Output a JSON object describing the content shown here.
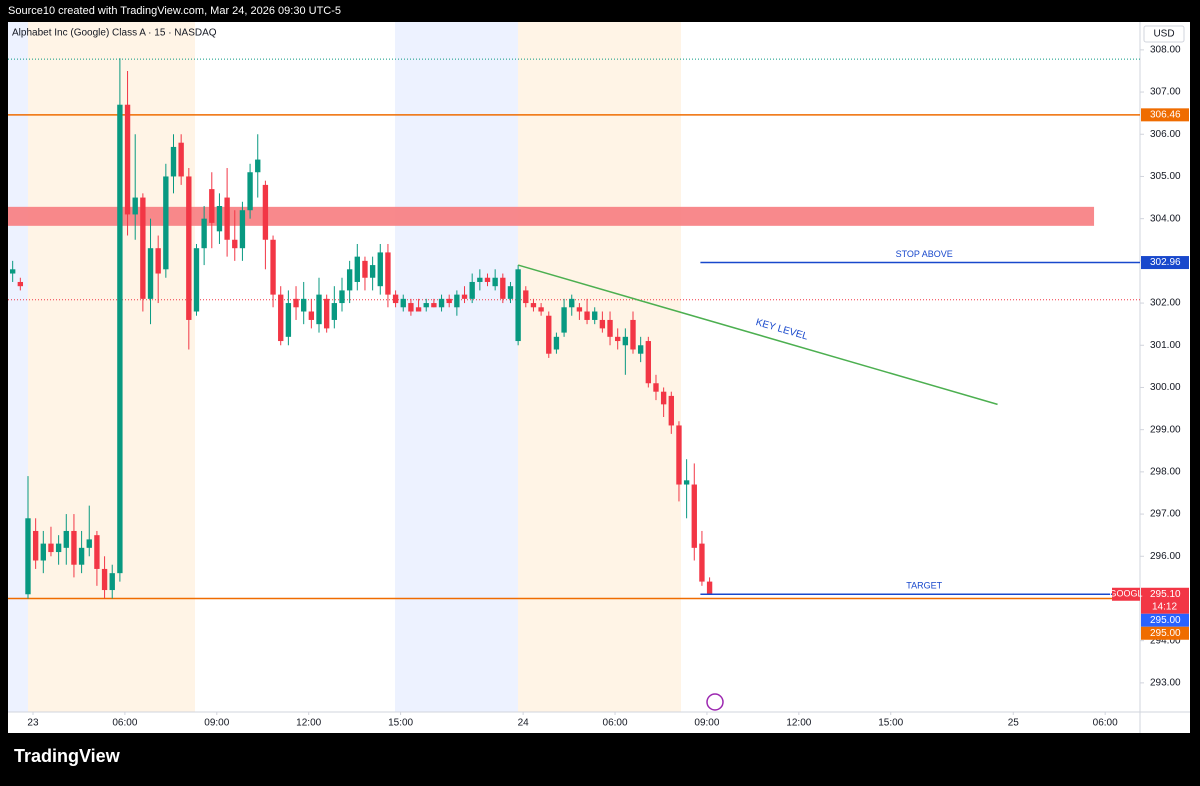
{
  "header": "Source10 created with TradingView.com, Mar 24, 2026 09:30 UTC-5",
  "footer": "TradingView",
  "chart_data": {
    "type": "candlestick",
    "title": "Alphabet Inc (Google) Class A · 15 · NASDAQ",
    "currency": "USD",
    "up_color": "#089981",
    "down_color": "#f23645",
    "xlim": [
      -2.61,
      145.2
    ],
    "ylim": [
      292.31,
      308.66
    ],
    "xticks": [
      {
        "value": 0,
        "label": "23"
      },
      {
        "value": 12,
        "label": "06:00"
      },
      {
        "value": 24,
        "label": "09:00"
      },
      {
        "value": 36,
        "label": "12:00"
      },
      {
        "value": 48,
        "label": "15:00"
      },
      {
        "value": 64,
        "label": "24"
      },
      {
        "value": 76,
        "label": "06:00"
      },
      {
        "value": 88,
        "label": "09:00"
      },
      {
        "value": 100,
        "label": "12:00"
      },
      {
        "value": 112,
        "label": "15:00"
      },
      {
        "value": 128,
        "label": "25"
      },
      {
        "value": 140,
        "label": "06:00"
      }
    ],
    "yticks": [
      {
        "value": 293,
        "label": "293.00"
      },
      {
        "value": 294,
        "label": "294.00"
      },
      {
        "value": 296,
        "label": "296.00"
      },
      {
        "value": 297,
        "label": "297.00"
      },
      {
        "value": 298,
        "label": "298.00"
      },
      {
        "value": 299,
        "label": "299.00"
      },
      {
        "value": 300,
        "label": "300.00"
      },
      {
        "value": 301,
        "label": "301.00"
      },
      {
        "value": 302,
        "label": "302.00"
      },
      {
        "value": 303,
        "label": "303.00"
      },
      {
        "value": 304,
        "label": "304.00"
      },
      {
        "value": 305,
        "label": "305.00"
      },
      {
        "value": 306,
        "label": "306.00"
      },
      {
        "value": 307,
        "label": "307.00"
      },
      {
        "value": 308,
        "label": "308.00"
      }
    ],
    "x": [
      -2,
      -1,
      0,
      1,
      2,
      3,
      4,
      5,
      6,
      7,
      8,
      9,
      10,
      11,
      12,
      13,
      14,
      15,
      16,
      17,
      18,
      19,
      20,
      21,
      22,
      23,
      24,
      25,
      26,
      27,
      28,
      29,
      30,
      31,
      32,
      33,
      34,
      35,
      36,
      37,
      38,
      39,
      40,
      41,
      42,
      43,
      44,
      45,
      46,
      47,
      48,
      49,
      50,
      51,
      52,
      53,
      54,
      55,
      56,
      57,
      58,
      59,
      60,
      61,
      62,
      63,
      64,
      65,
      66,
      67,
      68,
      69,
      70,
      71,
      72,
      73,
      74,
      75,
      76,
      77,
      78,
      79,
      80,
      81,
      82,
      83,
      84,
      85,
      86,
      87,
      88,
      89
    ],
    "ohlc": [
      [
        302.7,
        303.0,
        302.5,
        302.8
      ],
      [
        302.5,
        302.6,
        302.3,
        302.4
      ],
      [
        295.1,
        297.9,
        295.0,
        296.9
      ],
      [
        296.6,
        296.9,
        295.7,
        295.9
      ],
      [
        295.9,
        296.6,
        295.6,
        296.3
      ],
      [
        296.3,
        296.7,
        296.0,
        296.1
      ],
      [
        296.1,
        296.5,
        295.8,
        296.3
      ],
      [
        296.2,
        297.0,
        295.8,
        296.6
      ],
      [
        296.6,
        297.0,
        295.5,
        295.8
      ],
      [
        295.8,
        296.6,
        295.6,
        296.2
      ],
      [
        296.2,
        297.2,
        296.0,
        296.4
      ],
      [
        296.5,
        296.6,
        295.3,
        295.7
      ],
      [
        295.7,
        296.0,
        295.0,
        295.2
      ],
      [
        295.2,
        295.8,
        295.0,
        295.6
      ],
      [
        295.6,
        307.8,
        295.4,
        306.7
      ],
      [
        306.7,
        307.5,
        303.6,
        304.1
      ],
      [
        304.1,
        306.0,
        303.5,
        304.5
      ],
      [
        304.5,
        304.6,
        301.8,
        302.1
      ],
      [
        302.1,
        304.0,
        301.5,
        303.3
      ],
      [
        303.3,
        303.6,
        302.0,
        302.7
      ],
      [
        302.8,
        305.3,
        302.6,
        305.0
      ],
      [
        305.0,
        306.0,
        304.6,
        305.7
      ],
      [
        305.8,
        306.0,
        304.8,
        305.0
      ],
      [
        305.0,
        305.2,
        300.9,
        301.6
      ],
      [
        301.8,
        303.4,
        301.7,
        303.3
      ],
      [
        303.3,
        304.3,
        302.9,
        304.0
      ],
      [
        304.7,
        305.1,
        303.3,
        303.9
      ],
      [
        303.7,
        304.6,
        303.4,
        304.3
      ],
      [
        304.5,
        305.2,
        303.1,
        303.5
      ],
      [
        303.5,
        304.2,
        303.0,
        303.3
      ],
      [
        303.3,
        304.4,
        303.0,
        304.2
      ],
      [
        304.2,
        305.3,
        304.0,
        305.1
      ],
      [
        305.1,
        306.0,
        304.5,
        305.4
      ],
      [
        304.8,
        304.9,
        302.8,
        303.5
      ],
      [
        303.5,
        303.6,
        301.9,
        302.2
      ],
      [
        302.2,
        302.4,
        301.0,
        301.1
      ],
      [
        301.2,
        302.3,
        301.0,
        302.0
      ],
      [
        302.1,
        302.4,
        301.6,
        301.9
      ],
      [
        301.8,
        302.5,
        301.5,
        302.1
      ],
      [
        301.8,
        302.1,
        301.4,
        301.6
      ],
      [
        301.5,
        302.6,
        301.3,
        302.2
      ],
      [
        302.1,
        302.2,
        301.3,
        301.4
      ],
      [
        301.6,
        302.4,
        301.4,
        302.0
      ],
      [
        302.0,
        302.6,
        301.8,
        302.3
      ],
      [
        302.3,
        303.0,
        302.0,
        302.8
      ],
      [
        302.5,
        303.4,
        302.3,
        303.1
      ],
      [
        303.0,
        303.1,
        302.3,
        302.6
      ],
      [
        302.6,
        303.1,
        302.3,
        302.9
      ],
      [
        302.4,
        303.4,
        302.2,
        303.2
      ],
      [
        303.2,
        303.4,
        301.9,
        302.2
      ],
      [
        302.2,
        302.3,
        301.9,
        302.0
      ],
      [
        301.9,
        302.2,
        301.8,
        302.1
      ],
      [
        302.0,
        302.1,
        301.7,
        301.8
      ],
      [
        301.9,
        302.1,
        301.8,
        301.8
      ],
      [
        301.9,
        302.1,
        301.8,
        302.0
      ],
      [
        302.0,
        302.1,
        301.9,
        301.9
      ],
      [
        301.9,
        302.2,
        301.8,
        302.1
      ],
      [
        302.1,
        302.2,
        301.9,
        302.0
      ],
      [
        301.9,
        302.3,
        301.7,
        302.2
      ],
      [
        302.2,
        302.4,
        302.0,
        302.1
      ],
      [
        302.1,
        302.7,
        302.0,
        302.5
      ],
      [
        302.5,
        302.8,
        302.3,
        302.6
      ],
      [
        302.6,
        302.7,
        302.4,
        302.5
      ],
      [
        302.4,
        302.8,
        302.3,
        302.6
      ],
      [
        302.6,
        302.7,
        302.0,
        302.1
      ],
      [
        302.1,
        302.5,
        302.0,
        302.4
      ],
      [
        301.1,
        302.9,
        301.0,
        302.8
      ],
      [
        302.3,
        302.4,
        301.9,
        302.0
      ],
      [
        302.0,
        302.1,
        301.8,
        301.9
      ],
      [
        301.9,
        302.0,
        301.7,
        301.8
      ],
      [
        301.7,
        301.8,
        300.7,
        300.8
      ],
      [
        300.9,
        301.3,
        300.8,
        301.2
      ],
      [
        301.3,
        302.1,
        301.2,
        301.9
      ],
      [
        301.9,
        302.2,
        301.7,
        302.1
      ],
      [
        301.9,
        302.0,
        301.6,
        301.8
      ],
      [
        301.8,
        302.1,
        301.5,
        301.6
      ],
      [
        301.6,
        301.9,
        301.5,
        301.8
      ],
      [
        301.6,
        301.8,
        301.3,
        301.4
      ],
      [
        301.6,
        301.8,
        301.0,
        301.2
      ],
      [
        301.2,
        301.4,
        300.9,
        301.1
      ],
      [
        301.0,
        301.4,
        300.3,
        301.2
      ],
      [
        301.6,
        301.8,
        300.8,
        300.9
      ],
      [
        300.8,
        301.2,
        300.6,
        301.0
      ],
      [
        301.1,
        301.2,
        300.0,
        300.1
      ],
      [
        300.1,
        300.3,
        299.7,
        299.9
      ],
      [
        299.9,
        300.0,
        299.3,
        299.6
      ],
      [
        299.8,
        299.9,
        298.9,
        299.1
      ],
      [
        299.1,
        299.2,
        297.3,
        297.7
      ],
      [
        297.7,
        298.3,
        296.9,
        297.8
      ],
      [
        297.7,
        298.2,
        295.9,
        296.2
      ],
      [
        296.3,
        296.6,
        295.3,
        295.4
      ],
      [
        295.4,
        295.5,
        295.1,
        295.1
      ]
    ],
    "hlines": [
      {
        "value": 306.46,
        "color": "#ef6c00"
      },
      {
        "value": 295.0,
        "color": "#ef6c00"
      }
    ],
    "dotted_lines": [
      {
        "value": 307.78,
        "color": "#089981"
      },
      {
        "value": 302.08,
        "color": "#f23645"
      }
    ],
    "zone": {
      "low": 303.83,
      "high": 304.28,
      "x_end": 139.2,
      "color": "#f77c80"
    },
    "drawings": [
      {
        "name": "STOP ABOVE",
        "value": 302.96,
        "x_start": 87.8,
        "color": "#1848cc"
      },
      {
        "name": "TARGET",
        "value": 295.1,
        "x_start": 87.8,
        "color": "#1848cc"
      }
    ],
    "trend": {
      "label": "KEY LEVEL",
      "x": [
        64,
        126.6
      ],
      "y": [
        302.9,
        299.6
      ],
      "color": "#4caf50"
    },
    "price_labels": [
      {
        "value": 306.46,
        "label": "306.46",
        "bg": "#ef6c00"
      },
      {
        "value": 302.96,
        "label": "302.96",
        "bg": "#1848cc"
      },
      {
        "value": 295.1,
        "label": "295.10",
        "bg": "#f23645",
        "symbol": "GOOGL",
        "countdown": "14:12"
      },
      {
        "value": 295.0,
        "label": "295.00",
        "bg": "#2962ff"
      },
      {
        "value": 295.0,
        "label": "295.00",
        "bg": "#ef6c00"
      }
    ]
  }
}
